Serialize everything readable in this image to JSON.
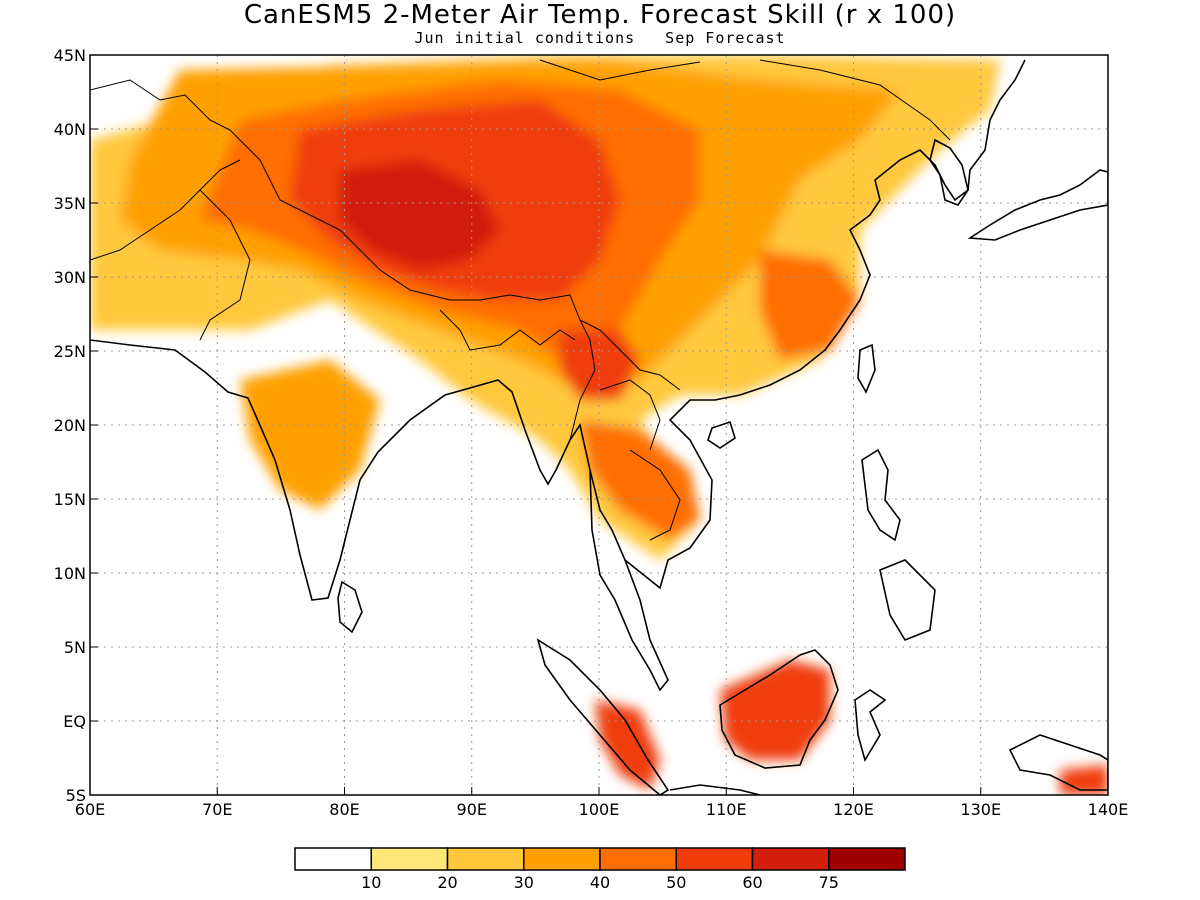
{
  "title": "CanESM5 2-Meter Air Temp. Forecast Skill (r x 100)",
  "subtitle": {
    "initial": "Jun initial conditions",
    "forecast": "Sep Forecast"
  },
  "map": {
    "lon_range": [
      60,
      140
    ],
    "lat_range": [
      -5,
      45
    ],
    "lon_ticks": [
      {
        "value": 60,
        "label": "60E"
      },
      {
        "value": 70,
        "label": "70E"
      },
      {
        "value": 80,
        "label": "80E"
      },
      {
        "value": 90,
        "label": "90E"
      },
      {
        "value": 100,
        "label": "100E"
      },
      {
        "value": 110,
        "label": "110E"
      },
      {
        "value": 120,
        "label": "120E"
      },
      {
        "value": 130,
        "label": "130E"
      },
      {
        "value": 140,
        "label": "140E"
      }
    ],
    "lat_ticks": [
      {
        "value": 45,
        "label": "45N"
      },
      {
        "value": 40,
        "label": "40N"
      },
      {
        "value": 35,
        "label": "35N"
      },
      {
        "value": 30,
        "label": "30N"
      },
      {
        "value": 25,
        "label": "25N"
      },
      {
        "value": 20,
        "label": "20N"
      },
      {
        "value": 15,
        "label": "15N"
      },
      {
        "value": 10,
        "label": "10N"
      },
      {
        "value": 5,
        "label": "5N"
      },
      {
        "value": 0,
        "label": "EQ"
      },
      {
        "value": -5,
        "label": "5S"
      }
    ],
    "grid": true,
    "shading_levels": [
      {
        "min": 20,
        "color": "#ffc83c"
      },
      {
        "min": 30,
        "color": "#ffa000"
      },
      {
        "min": 40,
        "color": "#ff6e00"
      },
      {
        "min": 50,
        "color": "#f03c0a"
      },
      {
        "min": 60,
        "color": "#d21e0a"
      }
    ]
  },
  "legend": {
    "colors": [
      "#ffffff",
      "#ffe678",
      "#ffc83c",
      "#ffa000",
      "#ff6e00",
      "#f03c0a",
      "#d21e0a",
      "#a00000"
    ],
    "labels": [
      "10",
      "20",
      "30",
      "40",
      "50",
      "60",
      "75"
    ]
  }
}
